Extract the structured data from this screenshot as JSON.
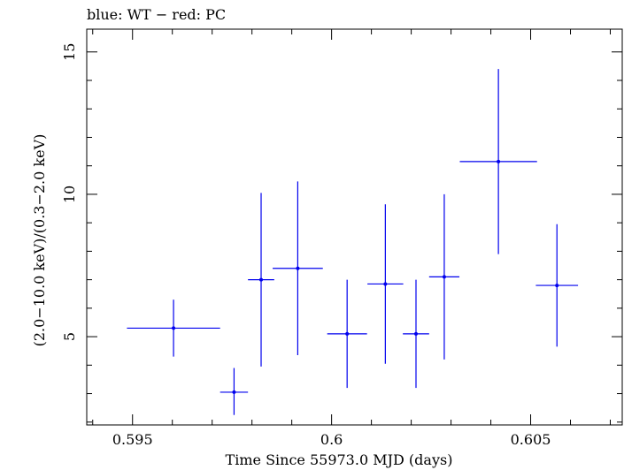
{
  "chart_data": {
    "type": "scatter",
    "title": "blue: WT − red: PC",
    "xlabel": "Time Since 55973.0 MJD (days)",
    "ylabel": "(2.0−10.0 keV)/(0.3−2.0 keV)",
    "xlim": [
      0.59385,
      0.6073
    ],
    "ylim": [
      1.9,
      15.8
    ],
    "x_ticks": [
      {
        "value": 0.595,
        "label": "0.595"
      },
      {
        "value": 0.6,
        "label": "0.6"
      },
      {
        "value": 0.605,
        "label": "0.605"
      }
    ],
    "y_ticks": [
      {
        "value": 5,
        "label": "5"
      },
      {
        "value": 10,
        "label": "10"
      },
      {
        "value": 15,
        "label": "15"
      }
    ],
    "series": [
      {
        "color": "#0000ee",
        "points": [
          {
            "x": 0.59603,
            "y": 5.3,
            "xerr": [
              0.00117,
              0.00117
            ],
            "yerr": [
              1.0,
              1.0
            ]
          },
          {
            "x": 0.59755,
            "y": 3.05,
            "xerr": [
              0.00035,
              0.00035
            ],
            "yerr": [
              0.8,
              0.85
            ]
          },
          {
            "x": 0.59823,
            "y": 7.0,
            "xerr": [
              0.00033,
              0.00033
            ],
            "yerr": [
              3.05,
              3.05
            ]
          },
          {
            "x": 0.59915,
            "y": 7.4,
            "xerr": [
              0.00063,
              0.00063
            ],
            "yerr": [
              3.05,
              3.05
            ]
          },
          {
            "x": 0.60039,
            "y": 5.1,
            "xerr": [
              0.0005,
              0.0005
            ],
            "yerr": [
              1.9,
              1.9
            ]
          },
          {
            "x": 0.60135,
            "y": 6.85,
            "xerr": [
              0.00045,
              0.00045
            ],
            "yerr": [
              2.8,
              2.8
            ]
          },
          {
            "x": 0.60212,
            "y": 5.1,
            "xerr": [
              0.00033,
              0.00033
            ],
            "yerr": [
              1.9,
              1.9
            ]
          },
          {
            "x": 0.60283,
            "y": 7.1,
            "xerr": [
              0.00038,
              0.00038
            ],
            "yerr": [
              2.9,
              2.9
            ]
          },
          {
            "x": 0.60419,
            "y": 11.15,
            "xerr": [
              0.00097,
              0.00097
            ],
            "yerr": [
              3.25,
              3.25
            ]
          },
          {
            "x": 0.60566,
            "y": 6.8,
            "xerr": [
              0.00053,
              0.00053
            ],
            "yerr": [
              2.15,
              2.15
            ]
          }
        ]
      }
    ]
  }
}
